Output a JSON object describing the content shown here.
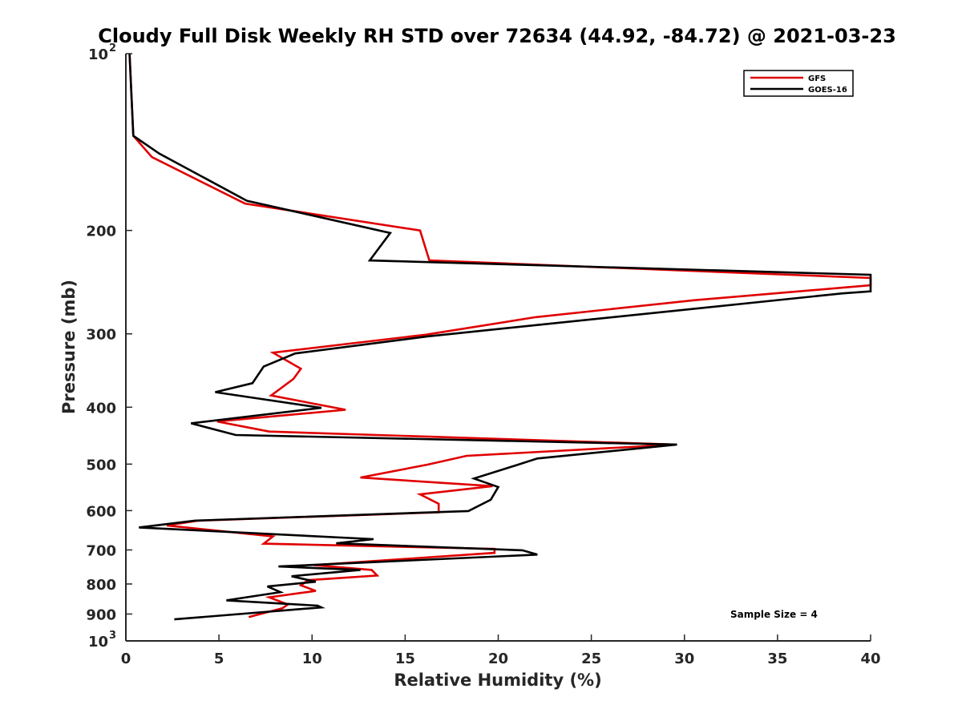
{
  "chart_data": {
    "type": "line",
    "title": "Cloudy Full Disk Weekly RH STD over 72634 (44.92, -84.72) @ 2021-03-23",
    "xlabel": "Relative Humidity (%)",
    "ylabel": "Pressure (mb)",
    "xlim": [
      0,
      40
    ],
    "ylim": [
      100,
      1000
    ],
    "y_scale": "log",
    "y_reversed": true,
    "x_ticks": [
      "0",
      "5",
      "10",
      "15",
      "20",
      "25",
      "30",
      "35",
      "40"
    ],
    "y_ticks": [
      {
        "value": 100,
        "label": "10",
        "sup": "2"
      },
      {
        "value": 200,
        "label": "200"
      },
      {
        "value": 300,
        "label": "300"
      },
      {
        "value": 400,
        "label": "400"
      },
      {
        "value": 500,
        "label": "500"
      },
      {
        "value": 600,
        "label": "600"
      },
      {
        "value": 700,
        "label": "700"
      },
      {
        "value": 800,
        "label": "800"
      },
      {
        "value": 900,
        "label": "900"
      },
      {
        "value": 1000,
        "label": "10",
        "sup": "3"
      }
    ],
    "legend_position": "top-right",
    "annotation": "Sample Size = 4",
    "series": [
      {
        "name": "GFS",
        "color": "#e00000",
        "points": [
          [
            0.2,
            100
          ],
          [
            0.4,
            138
          ],
          [
            1.4,
            150
          ],
          [
            6.4,
            180
          ],
          [
            15.8,
            200
          ],
          [
            16.3,
            225
          ],
          [
            40,
            241
          ],
          [
            40,
            248
          ],
          [
            30.5,
            263
          ],
          [
            22,
            281
          ],
          [
            16.1,
            301
          ],
          [
            7.9,
            323
          ],
          [
            9.4,
            344
          ],
          [
            9.0,
            358
          ],
          [
            7.8,
            382
          ],
          [
            11.8,
            404
          ],
          [
            4.9,
            423
          ],
          [
            7.7,
            440
          ],
          [
            29.5,
            463
          ],
          [
            18.3,
            484
          ],
          [
            16.2,
            501
          ],
          [
            12.6,
            527
          ],
          [
            19.7,
            545
          ],
          [
            15.8,
            563
          ],
          [
            16.8,
            584
          ],
          [
            16.8,
            604
          ],
          [
            3.9,
            624
          ],
          [
            2.2,
            636
          ],
          [
            7.9,
            664
          ],
          [
            7.4,
            683
          ],
          [
            19.8,
            697
          ],
          [
            19.8,
            708
          ],
          [
            10.1,
            743
          ],
          [
            13.2,
            757
          ],
          [
            13.5,
            774
          ],
          [
            9.8,
            788
          ],
          [
            9.4,
            804
          ],
          [
            10.2,
            822
          ],
          [
            7.7,
            843
          ],
          [
            8.7,
            867
          ],
          [
            8.4,
            880
          ],
          [
            6.6,
            911
          ]
        ]
      },
      {
        "name": "GOES-16",
        "color": "#000000",
        "points": [
          [
            0.2,
            100
          ],
          [
            0.4,
            138
          ],
          [
            1.8,
            148
          ],
          [
            6.5,
            178
          ],
          [
            14.2,
            202
          ],
          [
            13.1,
            225
          ],
          [
            40,
            238
          ],
          [
            40,
            254
          ],
          [
            38.5,
            256
          ],
          [
            16.2,
            303
          ],
          [
            9.1,
            324
          ],
          [
            7.4,
            341
          ],
          [
            6.8,
            364
          ],
          [
            4.8,
            377
          ],
          [
            10.5,
            401
          ],
          [
            3.5,
            426
          ],
          [
            5.9,
            446
          ],
          [
            29.6,
            463
          ],
          [
            22.1,
            489
          ],
          [
            20.9,
            503
          ],
          [
            18.7,
            529
          ],
          [
            20.0,
            547
          ],
          [
            19.6,
            575
          ],
          [
            18.4,
            601
          ],
          [
            3.7,
            624
          ],
          [
            0.7,
            641
          ],
          [
            13.3,
            671
          ],
          [
            11.3,
            682
          ],
          [
            21.3,
            701
          ],
          [
            22.1,
            713
          ],
          [
            8.2,
            747
          ],
          [
            12.6,
            757
          ],
          [
            8.9,
            776
          ],
          [
            10.2,
            793
          ],
          [
            7.6,
            808
          ],
          [
            8.3,
            826
          ],
          [
            5.4,
            853
          ],
          [
            10.3,
            871
          ],
          [
            10.5,
            877
          ],
          [
            2.6,
            919
          ]
        ]
      }
    ]
  }
}
